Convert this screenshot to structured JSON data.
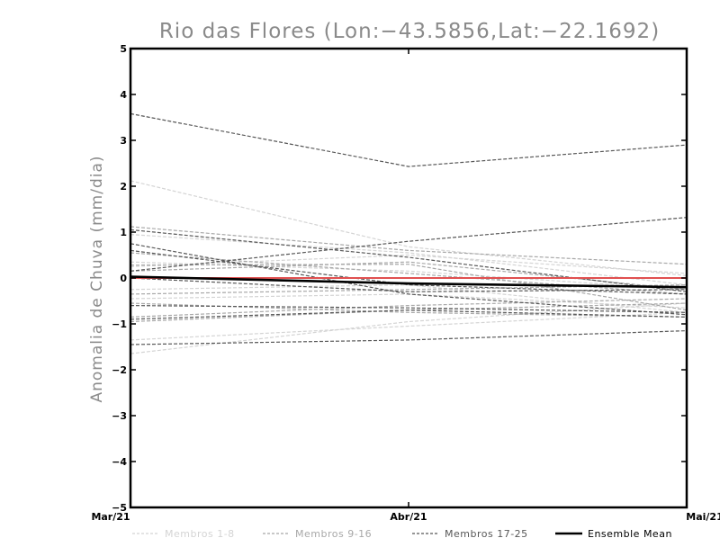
{
  "chart_data": {
    "type": "line",
    "title": "Rio das Flores (Lon:−43.5856,Lat:−22.1692)",
    "xlabel": "",
    "ylabel": "Anomalia de Chuva (mm/dia)",
    "categories": [
      "Mar/21",
      "Abr/21",
      "Mai/21"
    ],
    "ylim": [
      -5,
      5
    ],
    "yticks": [
      "5",
      "4",
      "3",
      "2",
      "1",
      "0",
      "−1",
      "−2",
      "−3",
      "−4",
      "−5"
    ],
    "ytick_values": [
      5,
      4,
      3,
      2,
      1,
      0,
      -1,
      -2,
      -3,
      -4,
      -5
    ],
    "reference_line": {
      "value": 0,
      "color": "#e05050"
    },
    "groups": [
      {
        "name": "Membros 1-8",
        "color": "#d4d4d4",
        "series": [
          [
            2.12,
            0.68,
            0.05
          ],
          [
            0.95,
            0.55,
            -0.15
          ],
          [
            -1.35,
            -1.05,
            -0.75
          ],
          [
            -1.65,
            -0.95,
            -0.55
          ],
          [
            -0.45,
            -0.35,
            -0.65
          ],
          [
            0.35,
            0.15,
            -0.25
          ],
          [
            -0.25,
            -0.15,
            -0.75
          ],
          [
            0.25,
            0.5,
            0.1
          ]
        ]
      },
      {
        "name": "Membros 9-16",
        "color": "#a8a8a8",
        "series": [
          [
            1.12,
            0.6,
            0.3
          ],
          [
            0.28,
            0.3,
            -0.7
          ],
          [
            -0.55,
            -0.75,
            -0.85
          ],
          [
            -0.85,
            -0.6,
            -0.45
          ],
          [
            -0.35,
            -0.25,
            -0.15
          ],
          [
            0.15,
            0.35,
            -0.25
          ],
          [
            0.55,
            0.1,
            -0.35
          ],
          [
            -0.95,
            -0.7,
            -0.55
          ]
        ]
      },
      {
        "name": "Membros 17-25",
        "color": "#585858",
        "series": [
          [
            3.58,
            2.43,
            2.9
          ],
          [
            1.05,
            0.45,
            -0.3
          ],
          [
            0.75,
            -0.35,
            -0.8
          ],
          [
            0.6,
            -0.15,
            -0.35
          ],
          [
            0.15,
            0.8,
            1.32
          ],
          [
            -0.9,
            -0.7,
            -0.85
          ],
          [
            -1.45,
            -1.35,
            -1.15
          ],
          [
            -0.6,
            -0.65,
            -0.75
          ],
          [
            0.0,
            -0.3,
            -0.25
          ]
        ]
      }
    ],
    "ensemble_mean": {
      "name": "Ensemble Mean",
      "color": "#000000",
      "values": [
        0.03,
        -0.12,
        -0.2
      ]
    },
    "legend": [
      "Membros 1-8",
      "Membros 9-16",
      "Membros 17-25",
      "Ensemble Mean"
    ],
    "legend_position": "bottom"
  }
}
